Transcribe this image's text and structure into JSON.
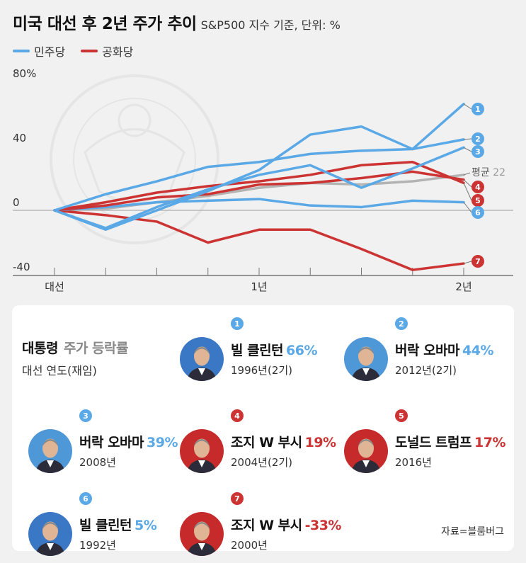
{
  "header": {
    "title": "미국 대선 후 2년 주가 추이",
    "subtitle": "S&P500 지수 기준, 단위: %"
  },
  "legend": [
    {
      "label": "민주당",
      "color": "#5aa9e6"
    },
    {
      "label": "공화당",
      "color": "#cc3333"
    }
  ],
  "chart_data": {
    "type": "line",
    "title": "미국 대선 후 2년 주가 추이",
    "subtitle": "S&P500 지수 기준, 단위: %",
    "x": [
      0,
      0.25,
      0.5,
      0.75,
      1,
      1.25,
      1.5,
      1.75,
      2
    ],
    "x_tick_labels": [
      {
        "x": 0,
        "label": "대선"
      },
      {
        "x": 1,
        "label": "1년"
      },
      {
        "x": 2,
        "label": "2년"
      }
    ],
    "y_tick_labels": [
      {
        "y": 80,
        "label": "80%"
      },
      {
        "y": 40,
        "label": "40"
      },
      {
        "y": 0,
        "label": "0"
      },
      {
        "y": -40,
        "label": "-40"
      }
    ],
    "ylim": [
      -40,
      80
    ],
    "xlim": [
      0,
      2.2
    ],
    "series": [
      {
        "rank": "1",
        "party": "D",
        "color": "#5aa9e6",
        "values": [
          0,
          -12,
          0,
          12,
          25,
          47,
          52,
          38,
          66
        ]
      },
      {
        "rank": "2",
        "party": "D",
        "color": "#5aa9e6",
        "values": [
          0,
          10,
          18,
          27,
          30,
          35,
          37,
          38,
          44
        ]
      },
      {
        "rank": "3",
        "party": "D",
        "color": "#5aa9e6",
        "values": [
          0,
          -11,
          2,
          13,
          22,
          28,
          14,
          26,
          39
        ]
      },
      {
        "rank": "4",
        "party": "R",
        "color": "#cc3333",
        "values": [
          0,
          3,
          8,
          10,
          16,
          17,
          20,
          24,
          19
        ]
      },
      {
        "rank": "5",
        "party": "R",
        "color": "#cc3333",
        "values": [
          0,
          5,
          11,
          15,
          18,
          22,
          28,
          30,
          17
        ]
      },
      {
        "rank": "6",
        "party": "D",
        "color": "#5aa9e6",
        "values": [
          0,
          2,
          5,
          6,
          7,
          3,
          2,
          6,
          5
        ]
      },
      {
        "rank": "7",
        "party": "R",
        "color": "#cc3333",
        "values": [
          0,
          -3,
          -7,
          -20,
          -12,
          -12,
          -24,
          -37,
          -33
        ]
      }
    ],
    "average": {
      "label": "평균",
      "value": "22",
      "color": "#b3b3b3",
      "values": [
        0,
        1,
        5,
        9,
        14,
        17,
        16,
        18,
        22
      ]
    },
    "grid": false,
    "legend_position": "top-left"
  },
  "panel": {
    "title": "대통령",
    "title_sub": "주가 등락률",
    "subtitle": "대선 연도(재임)",
    "source": "자료=블룸버그",
    "cards": [
      {
        "rank": "1",
        "name": "빌 클린턴",
        "pct": "66%",
        "year": "1996년(2기)",
        "party_color": "#5aa9e6",
        "avatar": "clinton-avatar-icon"
      },
      {
        "rank": "2",
        "name": "버락 오바마",
        "pct": "44%",
        "year": "2012년(2기)",
        "party_color": "#5aa9e6",
        "avatar": "obama-avatar-icon"
      },
      {
        "rank": "3",
        "name": "버락 오바마",
        "pct": "39%",
        "year": "2008년",
        "party_color": "#5aa9e6",
        "avatar": "obama-avatar-icon"
      },
      {
        "rank": "4",
        "name": "조지 W 부시",
        "pct": "19%",
        "year": "2004년(2기)",
        "party_color": "#cc3333",
        "avatar": "bush-avatar-icon"
      },
      {
        "rank": "5",
        "name": "도널드 트럼프",
        "pct": "17%",
        "year": "2016년",
        "party_color": "#cc3333",
        "avatar": "trump-avatar-icon"
      },
      {
        "rank": "6",
        "name": "빌 클린턴",
        "pct": "5%",
        "year": "1992년",
        "party_color": "#5aa9e6",
        "avatar": "clinton-avatar-icon"
      },
      {
        "rank": "7",
        "name": "조지 W 부시",
        "pct": "-33%",
        "year": "2000년",
        "party_color": "#cc3333",
        "avatar": "bush-avatar-icon"
      }
    ]
  }
}
